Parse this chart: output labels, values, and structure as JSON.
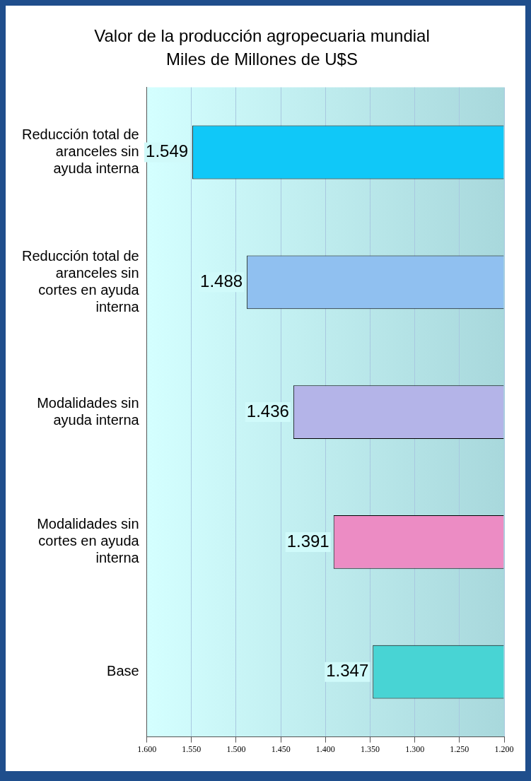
{
  "chart_data": {
    "type": "bar",
    "orientation": "horizontal",
    "title": "Valor de la producción agropecuaria mundial",
    "subtitle": "Miles de Millones de U$S",
    "categories": [
      "Reducción total de aranceles sin ayuda interna",
      "Reducción total de aranceles sin cortes en ayuda interna",
      "Modalidades sin ayuda interna",
      "Modalidades sin cortes en ayuda interna",
      "Base"
    ],
    "values": [
      1.549,
      1.488,
      1.436,
      1.391,
      1.347
    ],
    "colors": [
      "#10c8f8",
      "#90c0f0",
      "#b4b4e8",
      "#ec8cc4",
      "#48d4d4"
    ],
    "value_labels": [
      "1.549",
      "1.488",
      "1.436",
      "1.391",
      "1.347"
    ],
    "xlim": [
      1.6,
      1.2
    ],
    "xticks": [
      {
        "value": 1.6,
        "label": "1.600"
      },
      {
        "value": 1.55,
        "label": "1.550"
      },
      {
        "value": 1.5,
        "label": "1.500"
      },
      {
        "value": 1.45,
        "label": "1.450"
      },
      {
        "value": 1.4,
        "label": "1.400"
      },
      {
        "value": 1.35,
        "label": "1.350"
      },
      {
        "value": 1.3,
        "label": "1.300"
      },
      {
        "value": 1.25,
        "label": "1.250"
      },
      {
        "value": 1.2,
        "label": "1.200"
      }
    ],
    "grid": "x",
    "legend": false
  }
}
